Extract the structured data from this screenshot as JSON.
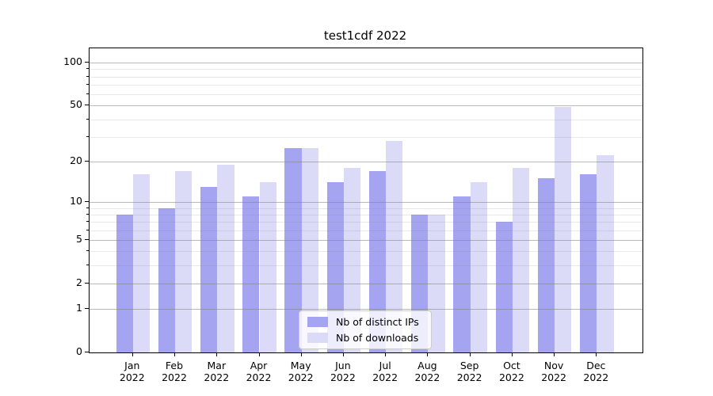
{
  "chart_data": {
    "type": "bar",
    "title": "test1cdf 2022",
    "categories": [
      "Jan",
      "Feb",
      "Mar",
      "Apr",
      "May",
      "Jun",
      "Jul",
      "Aug",
      "Sep",
      "Oct",
      "Nov",
      "Dec"
    ],
    "x_year_label": "2022",
    "series": [
      {
        "name": "Nb of distinct IPs",
        "color": "#a4a4f0",
        "values": [
          8,
          9,
          13,
          11,
          25,
          14,
          17,
          8,
          11,
          7,
          15,
          16
        ]
      },
      {
        "name": "Nb of downloads",
        "color": "#dbdbf7",
        "values": [
          16,
          17,
          19,
          14,
          25,
          18,
          28,
          8,
          14,
          18,
          49,
          22
        ]
      }
    ],
    "yscale": "log1p",
    "ylim": [
      0,
      126
    ],
    "yticks": [
      0,
      1,
      2,
      5,
      10,
      20,
      50,
      100
    ],
    "ytick_labels": [
      "0",
      "1",
      "2",
      "5",
      "10",
      "20",
      "50",
      "100"
    ],
    "minor_yticks": [
      3,
      4,
      6,
      7,
      8,
      9,
      30,
      40,
      60,
      70,
      80,
      90
    ],
    "grid": true,
    "legend_position": "lower center inside",
    "colors": {
      "major_grid": "#b3b3b3",
      "minor_grid": "#e6e6e6",
      "spine": "#000000",
      "background": "#ffffff"
    }
  }
}
